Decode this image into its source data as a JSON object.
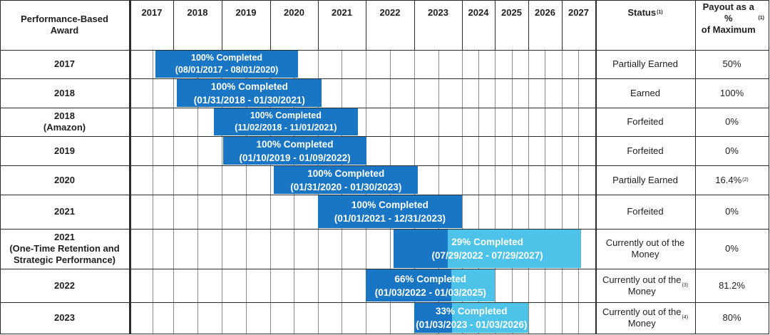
{
  "headers": {
    "award": "Performance-Based Award",
    "status": "Status",
    "status_note": "(1)",
    "payout": "Payout as a % of Maximum",
    "payout_note": "(1)",
    "years": [
      "2017",
      "2018",
      "2019",
      "2020",
      "2021",
      "2022",
      "2023",
      "2024",
      "2025",
      "2026",
      "2027"
    ]
  },
  "rows": [
    {
      "award": "2017",
      "status": "Partially Earned",
      "status_note": "",
      "payout": "50%",
      "payout_note": "",
      "bar": {
        "pct": "100% Completed",
        "dates": "(08/01/2017 - 08/01/2020)",
        "start": "2017-08-01",
        "end": "2020-08-01",
        "completion": 1.0
      }
    },
    {
      "award": "2018",
      "status": "Earned",
      "status_note": "",
      "payout": "100%",
      "payout_note": "",
      "bar": {
        "pct": "100% Completed",
        "dates": "(01/31/2018 - 01/30/2021)",
        "start": "2018-01-31",
        "end": "2021-01-30",
        "completion": 1.0
      }
    },
    {
      "award": "2018\n(Amazon)",
      "status": "Forfeited",
      "status_note": "",
      "payout": "0%",
      "payout_note": "",
      "bar": {
        "pct": "100% Completed",
        "dates": "(11/02/2018 - 11/01/2021)",
        "start": "2018-11-02",
        "end": "2021-11-01",
        "completion": 1.0
      }
    },
    {
      "award": "2019",
      "status": "Forfeited",
      "status_note": "",
      "payout": "0%",
      "payout_note": "",
      "bar": {
        "pct": "100% Completed",
        "dates": "(01/10/2019 - 01/09/2022)",
        "start": "2019-01-10",
        "end": "2022-01-09",
        "completion": 1.0
      }
    },
    {
      "award": "2020",
      "status": "Partially Earned",
      "status_note": "",
      "payout": "16.4%",
      "payout_note": "(2)",
      "bar": {
        "pct": "100% Completed",
        "dates": "(01/31/2020 - 01/30/2023)",
        "start": "2020-01-31",
        "end": "2023-01-30",
        "completion": 1.0
      }
    },
    {
      "award": "2021",
      "status": "Forfeited",
      "status_note": "",
      "payout": "0%",
      "payout_note": "",
      "bar": {
        "pct": "100% Completed",
        "dates": "(01/01/2021 - 12/31/2023)",
        "start": "2021-01-01",
        "end": "2023-12-31",
        "completion": 1.0
      }
    },
    {
      "award": "2021\n(One-Time Retention and\nStrategic Performance)",
      "status": "Currently out of the\nMoney",
      "status_note": "",
      "payout": "0%",
      "payout_note": "",
      "bar": {
        "pct": "29% Completed",
        "dates": "(07/29/2022 - 07/29/2027)",
        "start": "2022-07-29",
        "end": "2027-07-29",
        "completion": 0.29
      }
    },
    {
      "award": "2022",
      "status": "Currently out of the\nMoney",
      "status_note": "(3)",
      "payout": "81.2%",
      "payout_note": "",
      "bar": {
        "pct": "66% Completed",
        "dates": "(01/03/2022 - 01/03/2025)",
        "start": "2022-01-03",
        "end": "2025-01-03",
        "completion": 0.66
      }
    },
    {
      "award": "2023",
      "status": "Currently out of the\nMoney",
      "status_note": "(4)",
      "payout": "80%",
      "payout_note": "",
      "bar": {
        "pct": "33% Completed",
        "dates": "(01/03/2023 - 01/03/2026)",
        "start": "2023-01-03",
        "end": "2026-01-03",
        "completion": 0.33
      }
    }
  ],
  "colors": {
    "completed": "#1976c4",
    "remaining": "#4dc3ea",
    "grid": "#2b2b2b"
  }
}
